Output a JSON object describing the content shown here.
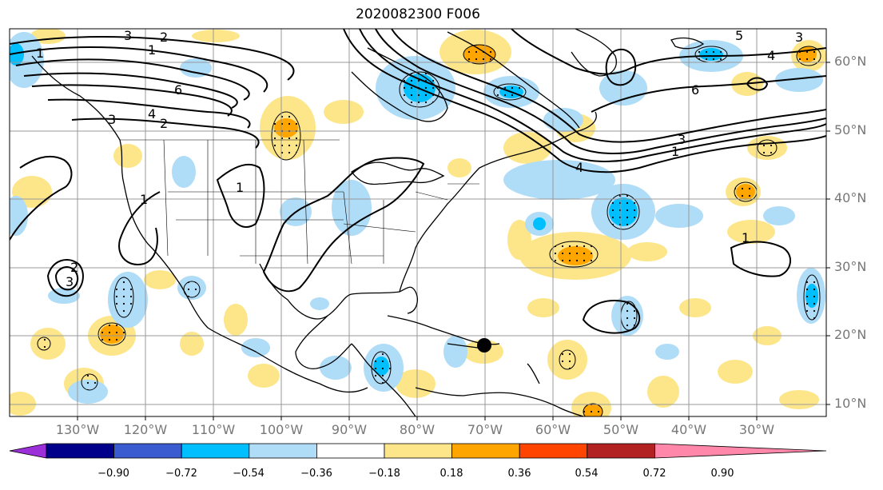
{
  "title": "2020082300 F006",
  "lat_labels": [
    "60°N",
    "50°N",
    "40°N",
    "30°N",
    "20°N",
    "10°N"
  ],
  "lon_labels": [
    "130°W",
    "120°W",
    "110°W",
    "100°W",
    "90°W",
    "80°W",
    "70°W",
    "60°W",
    "50°W",
    "40°W",
    "30°W"
  ],
  "colorbar": {
    "ticks": [
      "−0.90",
      "−0.72",
      "−0.54",
      "−0.36",
      "−0.18",
      "0.18",
      "0.36",
      "0.54",
      "0.72",
      "0.90"
    ],
    "colors": [
      "#9b30d9",
      "#00008b",
      "#3b5bd0",
      "#00bfff",
      "#afdcf7",
      "#ffffff",
      "#fde68a",
      "#ffa500",
      "#ff4500",
      "#b22222",
      "#ff88aa"
    ]
  },
  "contour_labels": [
    "1",
    "2",
    "3",
    "4",
    "6",
    "1",
    "2",
    "3",
    "4",
    "6",
    "1",
    "3",
    "4",
    "5",
    "3",
    "1",
    "1",
    "1",
    "2",
    "3"
  ],
  "colors": {
    "positive": "#fde68a",
    "positive_strong": "#ffa500",
    "negative": "#afdcf7",
    "negative_strong": "#00bfff",
    "grid": "#999999",
    "land": "#000000"
  },
  "marker": "hurricane-position-dot"
}
